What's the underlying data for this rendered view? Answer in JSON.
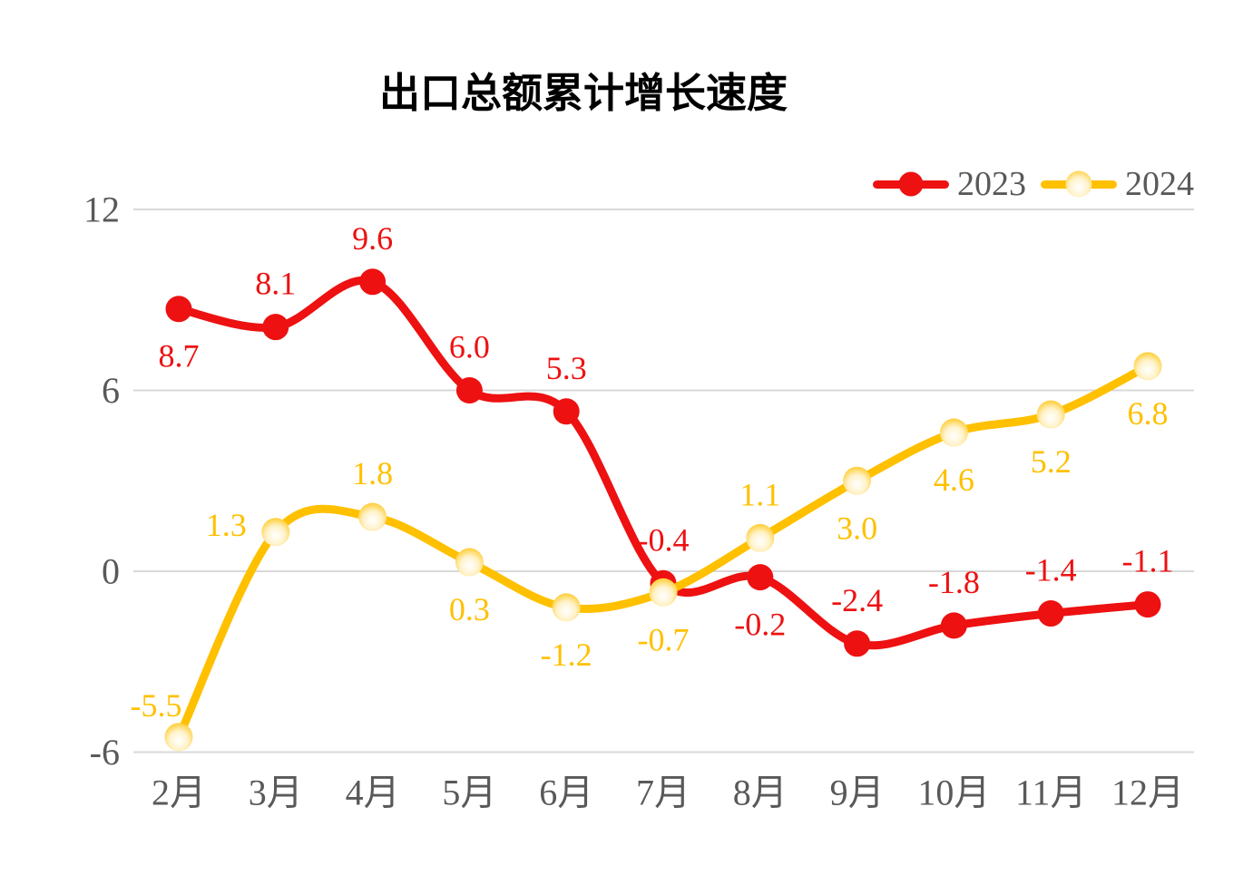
{
  "title": "出口总额累计增长速度",
  "legend": {
    "position": "top-right",
    "items": [
      {
        "label": "2023",
        "color": "#ED1111",
        "marker": "solid-circle"
      },
      {
        "label": "2024",
        "color": "#FFC000",
        "marker": "gradient-ball"
      }
    ]
  },
  "chart_data": {
    "type": "line",
    "line_style": "smooth",
    "title": "出口总额累计增长速度",
    "xlabel": "",
    "ylabel": "",
    "categories": [
      "2月",
      "3月",
      "4月",
      "5月",
      "6月",
      "7月",
      "8月",
      "9月",
      "10月",
      "11月",
      "12月"
    ],
    "series": [
      {
        "name": "2023",
        "color": "#ED1111",
        "values": [
          8.7,
          8.1,
          9.6,
          6.0,
          5.3,
          -0.4,
          -0.2,
          -2.4,
          -1.8,
          -1.4,
          -1.1
        ],
        "labels": [
          "8.7",
          "8.1",
          "9.6",
          "6.0",
          "5.3",
          "-0.4",
          "-0.2",
          "-2.4",
          "-1.8",
          "-1.4",
          "-1.1"
        ],
        "label_positions": [
          "below",
          "above",
          "above",
          "above",
          "above",
          "above",
          "below",
          "above",
          "above",
          "above",
          "above"
        ]
      },
      {
        "name": "2024",
        "color": "#FFC000",
        "values": [
          -5.5,
          1.3,
          1.8,
          0.3,
          -1.2,
          -0.7,
          1.1,
          3.0,
          4.6,
          5.2,
          6.8
        ],
        "labels": [
          "-5.5",
          "1.3",
          "1.8",
          "0.3",
          "-1.2",
          "-0.7",
          "1.1",
          "3.0",
          "4.6",
          "5.2",
          "6.8"
        ],
        "label_positions": [
          "above-left",
          "left",
          "above",
          "below",
          "below",
          "below",
          "above",
          "below",
          "below",
          "below",
          "below"
        ]
      }
    ],
    "yticks": [
      12,
      6,
      0,
      -6
    ],
    "ytick_labels": [
      "12",
      "6",
      "0",
      "-6"
    ],
    "ylim": [
      -7.5,
      12
    ],
    "grid": "horizontal",
    "gridline_color": "#D9D9D9",
    "axis_text_color": "#595959",
    "legend_position": "top-right"
  }
}
